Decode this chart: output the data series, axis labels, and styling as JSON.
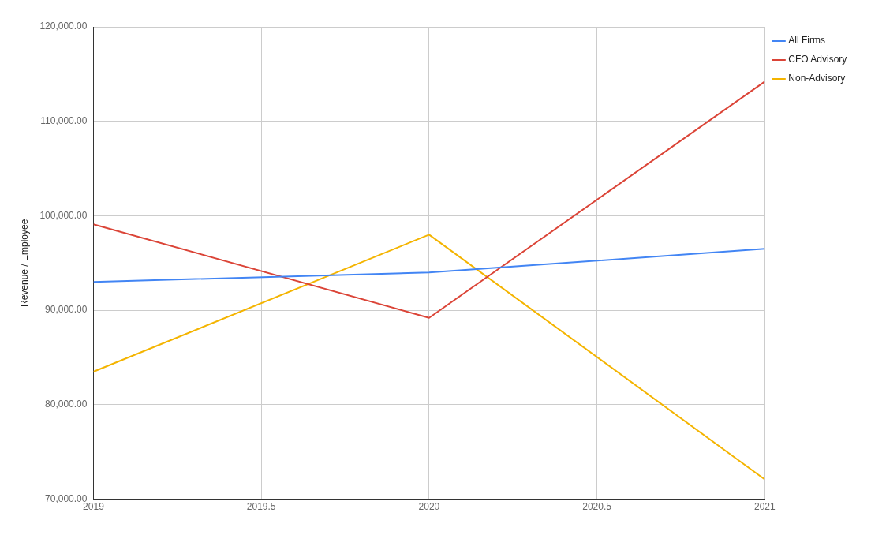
{
  "chart_data": {
    "type": "line",
    "ylabel": "Revenue / Employee",
    "x": [
      2019,
      2020,
      2021
    ],
    "series": [
      {
        "name": "All Firms",
        "color": "#4285f4",
        "values": [
          93000,
          94000,
          96500
        ]
      },
      {
        "name": "CFO Advisory",
        "color": "#db4437",
        "values": [
          99100,
          89200,
          114200
        ]
      },
      {
        "name": "Non-Advisory",
        "color": "#f4b400",
        "values": [
          83500,
          98000,
          72100
        ]
      }
    ],
    "xlim": [
      2019,
      2021
    ],
    "xticks": [
      2019,
      2019.5,
      2020,
      2020.5,
      2021
    ],
    "ylim": [
      70000,
      120000
    ],
    "yticks": [
      {
        "value": 70000,
        "label": "70,000.00"
      },
      {
        "value": 80000,
        "label": "80,000.00"
      },
      {
        "value": 90000,
        "label": "90,000.00"
      },
      {
        "value": 100000,
        "label": "100,000.00"
      },
      {
        "value": 110000,
        "label": "110,000.00"
      },
      {
        "value": 120000,
        "label": "120,000.00"
      }
    ],
    "grid": true,
    "legend": "top right",
    "marker": "none",
    "line_style": "solid"
  }
}
